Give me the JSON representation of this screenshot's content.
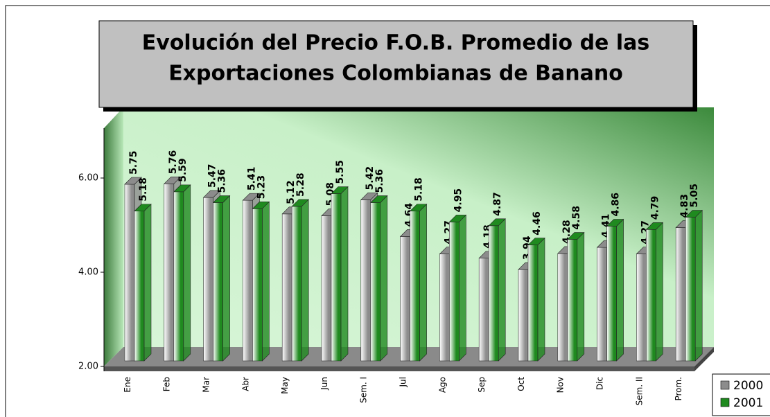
{
  "chart_data": {
    "type": "bar3d",
    "title": [
      "Evolución del Precio F.O.B. Promedio de las",
      "Exportaciones Colombianas de Banano"
    ],
    "categories": [
      "Ene",
      "Feb",
      "Mar",
      "Abr",
      "May",
      "Jun",
      "Sem. I",
      "Jul",
      "Ago",
      "Sep",
      "Oct",
      "Nov",
      "Dic",
      "Sem. II",
      "Prom."
    ],
    "series": [
      {
        "name": "2000",
        "color": "#8c8c8c",
        "values": [
          5.75,
          5.76,
          5.47,
          5.41,
          5.12,
          5.08,
          5.42,
          4.64,
          4.27,
          4.18,
          3.94,
          4.28,
          4.41,
          4.27,
          4.83
        ]
      },
      {
        "name": "2001",
        "color": "#1f8a1f",
        "values": [
          5.18,
          5.59,
          5.36,
          5.23,
          5.28,
          5.55,
          5.36,
          5.18,
          4.95,
          4.87,
          4.46,
          4.58,
          4.86,
          4.79,
          5.05
        ]
      }
    ],
    "ylim": [
      2,
      7
    ],
    "yticks": [
      {
        "value": 2,
        "label": "2.00"
      },
      {
        "value": 4,
        "label": "4.00"
      },
      {
        "value": 6,
        "label": "6.00"
      }
    ],
    "legend": "bottom-right"
  }
}
